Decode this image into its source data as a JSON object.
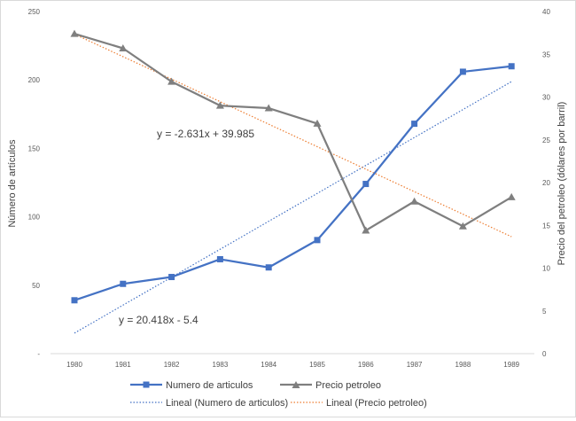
{
  "chart_data": {
    "type": "line",
    "title": "",
    "categories": [
      "1980",
      "1981",
      "1982",
      "1983",
      "1984",
      "1985",
      "1986",
      "1987",
      "1988",
      "1989"
    ],
    "y_left": {
      "label": "Número de artículos",
      "ticks": [
        "-",
        "50",
        "100",
        "150",
        "200",
        "250"
      ],
      "range": [
        0,
        250
      ]
    },
    "y_right": {
      "label": "Precio del petroleo (dólares por barril)",
      "ticks": [
        "0",
        "5",
        "10",
        "15",
        "20",
        "25",
        "30",
        "35",
        "40"
      ],
      "range": [
        0,
        40
      ]
    },
    "series": [
      {
        "name": "Numero de articulos",
        "axis": "left",
        "color": "#4472c4",
        "marker": "square",
        "values": [
          39,
          51,
          56,
          69,
          63,
          83,
          124,
          168,
          206,
          210
        ]
      },
      {
        "name": "Precio petroleo",
        "axis": "right",
        "color": "#7f7f7f",
        "marker": "triangle",
        "values": [
          37.4,
          35.7,
          31.8,
          29.0,
          28.7,
          26.9,
          14.4,
          17.8,
          14.9,
          18.3
        ]
      }
    ],
    "trendlines": [
      {
        "name": "Lineal (Numero de articulos)",
        "axis": "left",
        "color": "#4472c4",
        "style": "dotted",
        "equation": "y = 20.418x - 5.4",
        "slope": 20.418,
        "intercept": -5.4
      },
      {
        "name": "Lineal (Precio petroleo)",
        "axis": "right",
        "color": "#ed7d31",
        "style": "dotted",
        "equation": "y = -2.631x + 39.985",
        "slope": -2.631,
        "intercept": 39.985
      }
    ],
    "grid": false,
    "legend": "bottom"
  }
}
